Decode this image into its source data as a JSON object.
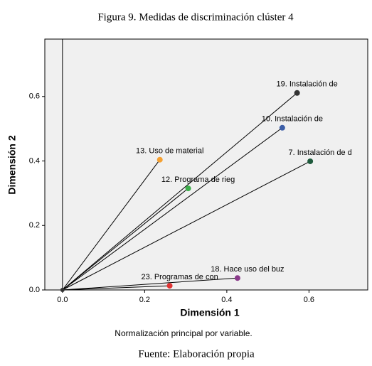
{
  "chart_data": {
    "type": "scatter",
    "title": "Figura 9. Medidas de discriminación clúster 4",
    "x_label": "Dimensión 1",
    "y_label": "Dimensión 2",
    "note": "Normalización principal por variable.",
    "source": "Fuente: Elaboración propia",
    "labels": [
      "19. Instalación de",
      "10. Instalación de",
      "7. Instalación de d",
      "13. Uso de material",
      "12. Programa de rieg",
      "18. Hace uso del buz",
      "23. Programas de con"
    ],
    "x": [
      0.571,
      0.535,
      0.603,
      0.237,
      0.306,
      0.426,
      0.261
    ],
    "values": [
      0.611,
      0.503,
      0.399,
      0.404,
      0.315,
      0.037,
      0.013
    ],
    "colors": [
      "#333333",
      "#3d5fa8",
      "#1e5a3c",
      "#f5a030",
      "#3cae4a",
      "#8a3a8a",
      "#e03434"
    ],
    "xlim": [
      -0.043,
      0.743
    ],
    "ylim": [
      0,
      0.778
    ],
    "xticks": [
      {
        "value": 0,
        "label": "0.0"
      },
      0.2,
      0.4,
      0.6
    ],
    "yticks": [
      {
        "value": 0,
        "label": "0.0"
      },
      0.2,
      0.4,
      0.6
    ]
  }
}
